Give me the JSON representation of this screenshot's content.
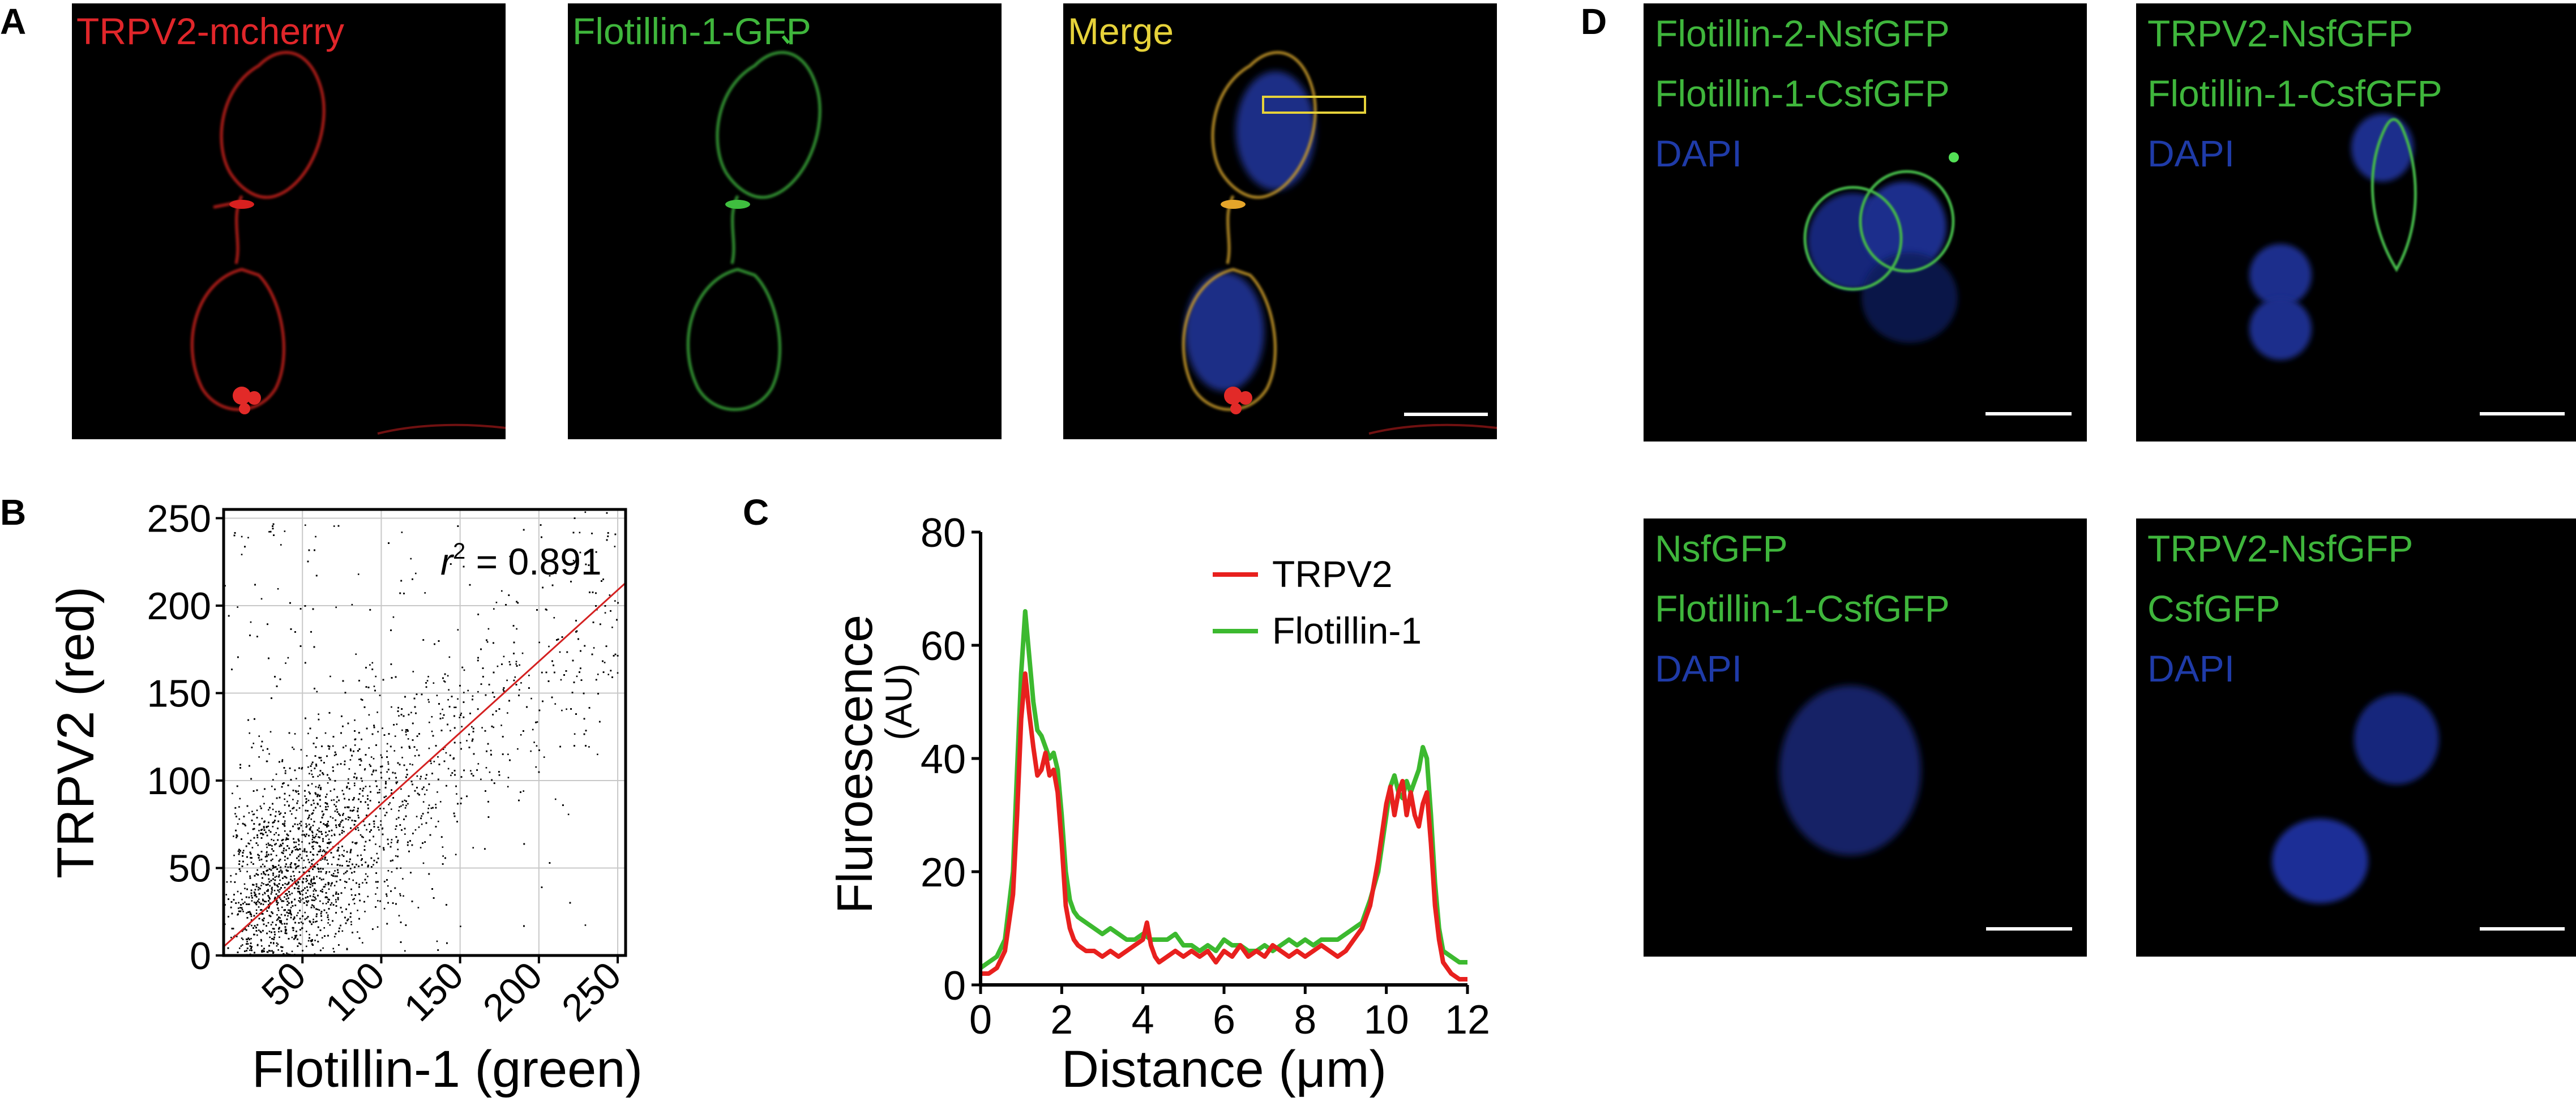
{
  "panels": {
    "A": {
      "letter": "A",
      "images": [
        {
          "label": "TRPV2-mcherry",
          "color": "#e0262a"
        },
        {
          "label": "Flotillin-1-GFP",
          "color": "#3fb63c"
        },
        {
          "label": "Merge",
          "color": "#e6d23a"
        }
      ]
    },
    "B": {
      "letter": "B"
    },
    "C": {
      "letter": "C"
    },
    "D": {
      "letter": "D",
      "images": [
        {
          "lines": [
            {
              "text": "Flotillin-2-NsfGFP",
              "color": "#3fb63c"
            },
            {
              "text": "Flotillin-1-CsfGFP",
              "color": "#3fb63c"
            },
            {
              "text": "DAPI",
              "color": "#1f3ba8"
            }
          ]
        },
        {
          "lines": [
            {
              "text": "TRPV2-NsfGFP",
              "color": "#3fb63c"
            },
            {
              "text": "Flotillin-1-CsfGFP",
              "color": "#3fb63c"
            },
            {
              "text": "DAPI",
              "color": "#1f3ba8"
            }
          ]
        },
        {
          "lines": [
            {
              "text": "NsfGFP",
              "color": "#3fb63c"
            },
            {
              "text": "Flotillin-1-CsfGFP",
              "color": "#3fb63c"
            },
            {
              "text": "DAPI",
              "color": "#1f3ba8"
            }
          ]
        },
        {
          "lines": [
            {
              "text": "TRPV2-NsfGFP",
              "color": "#3fb63c"
            },
            {
              "text": "CsfGFP",
              "color": "#3fb63c"
            },
            {
              "text": "DAPI",
              "color": "#1f3ba8"
            }
          ]
        }
      ]
    }
  },
  "chart_data": [
    {
      "type": "scatter",
      "panel": "B",
      "xlabel": "Flotillin-1 (green)",
      "ylabel": "TRPV2 (red)",
      "xlim": [
        0,
        255
      ],
      "ylim": [
        0,
        255
      ],
      "xticks": [
        50,
        100,
        150,
        200,
        250
      ],
      "yticks": [
        0,
        50,
        100,
        150,
        200,
        250
      ],
      "grid": true,
      "annotation": {
        "r_symbol": "r",
        "r_exponent": "2",
        "text": " = 0.891"
      },
      "fit_line": {
        "x": [
          0,
          255
        ],
        "y": [
          5,
          213
        ]
      },
      "point_color": "#000000",
      "fit_color": "#d42020"
    },
    {
      "type": "line",
      "panel": "C",
      "xlabel": "Distance (μm)",
      "ylabel": "Fluroescence",
      "ylabel_unit": "(AU)",
      "xlim": [
        0,
        12
      ],
      "ylim": [
        0,
        80
      ],
      "xticks": [
        0,
        2,
        4,
        6,
        8,
        10,
        12
      ],
      "yticks": [
        0,
        20,
        40,
        60,
        80
      ],
      "legend_position": "top-right",
      "series": [
        {
          "name": "TRPV2",
          "color": "#e8201e",
          "x": [
            0,
            0.2,
            0.4,
            0.6,
            0.8,
            0.9,
            1.0,
            1.1,
            1.2,
            1.3,
            1.4,
            1.5,
            1.6,
            1.7,
            1.8,
            1.9,
            2.0,
            2.1,
            2.2,
            2.3,
            2.4,
            2.6,
            2.8,
            3.0,
            3.2,
            3.4,
            3.6,
            3.8,
            4.0,
            4.1,
            4.2,
            4.3,
            4.4,
            4.6,
            4.8,
            5.0,
            5.2,
            5.4,
            5.6,
            5.8,
            6.0,
            6.2,
            6.4,
            6.6,
            6.8,
            7.0,
            7.2,
            7.4,
            7.6,
            7.8,
            8.0,
            8.2,
            8.4,
            8.6,
            8.8,
            9.0,
            9.2,
            9.4,
            9.6,
            9.8,
            10.0,
            10.1,
            10.2,
            10.3,
            10.4,
            10.5,
            10.6,
            10.7,
            10.8,
            10.9,
            11.0,
            11.1,
            11.2,
            11.3,
            11.4,
            11.6,
            11.8,
            12.0
          ],
          "y": [
            2,
            2,
            3,
            6,
            16,
            30,
            47,
            55,
            48,
            42,
            37,
            38,
            41,
            37,
            38,
            34,
            25,
            14,
            10,
            8,
            7,
            6,
            6,
            5,
            6,
            5,
            6,
            7,
            8,
            11,
            7,
            5,
            4,
            5,
            6,
            5,
            6,
            5,
            6,
            4,
            6,
            5,
            7,
            5,
            6,
            5,
            7,
            6,
            5,
            6,
            5,
            6,
            7,
            6,
            5,
            6,
            8,
            10,
            14,
            22,
            32,
            35,
            30,
            34,
            36,
            30,
            34,
            30,
            28,
            32,
            34,
            25,
            14,
            8,
            4,
            2,
            1,
            1
          ]
        },
        {
          "name": "Flotillin-1",
          "color": "#3cb92f",
          "x": [
            0,
            0.2,
            0.4,
            0.6,
            0.8,
            0.9,
            1.0,
            1.1,
            1.2,
            1.3,
            1.4,
            1.5,
            1.6,
            1.7,
            1.8,
            1.9,
            2.0,
            2.1,
            2.2,
            2.3,
            2.4,
            2.6,
            2.8,
            3.0,
            3.2,
            3.4,
            3.6,
            3.8,
            4.0,
            4.2,
            4.4,
            4.6,
            4.8,
            5.0,
            5.2,
            5.4,
            5.6,
            5.8,
            6.0,
            6.2,
            6.4,
            6.6,
            6.8,
            7.0,
            7.2,
            7.4,
            7.6,
            7.8,
            8.0,
            8.2,
            8.4,
            8.6,
            8.8,
            9.0,
            9.2,
            9.4,
            9.6,
            9.8,
            10.0,
            10.1,
            10.2,
            10.3,
            10.4,
            10.5,
            10.6,
            10.7,
            10.8,
            10.9,
            11.0,
            11.1,
            11.2,
            11.3,
            11.4,
            11.6,
            11.8,
            12.0
          ],
          "y": [
            3,
            4,
            5,
            8,
            20,
            38,
            55,
            66,
            58,
            50,
            45,
            44,
            42,
            40,
            41,
            38,
            30,
            20,
            15,
            13,
            12,
            11,
            10,
            9,
            10,
            9,
            8,
            8,
            9,
            8,
            8,
            8,
            9,
            7,
            7,
            6,
            7,
            6,
            8,
            7,
            7,
            6,
            6,
            7,
            6,
            7,
            8,
            7,
            8,
            7,
            8,
            8,
            8,
            9,
            10,
            11,
            15,
            20,
            30,
            35,
            37,
            34,
            33,
            36,
            34,
            36,
            38,
            42,
            40,
            30,
            18,
            10,
            6,
            5,
            4,
            4
          ]
        }
      ]
    }
  ]
}
